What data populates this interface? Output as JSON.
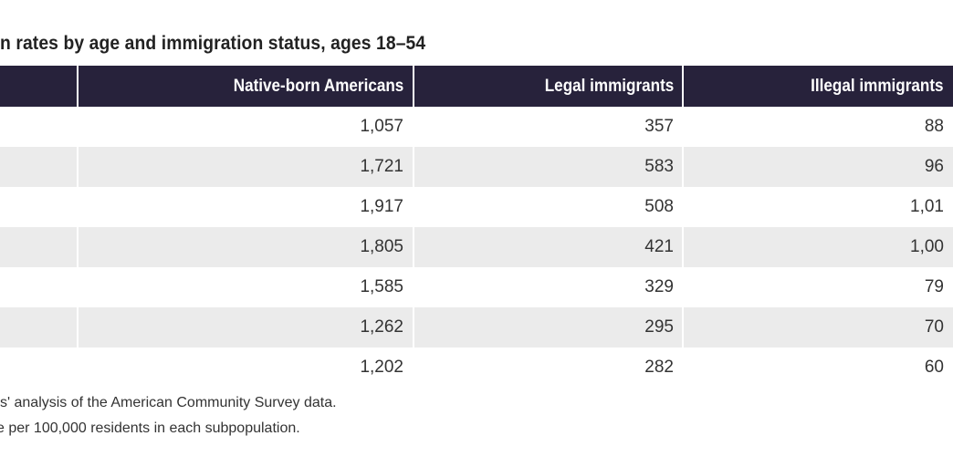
{
  "title": "n rates by age and immigration status, ages 18–54",
  "table": {
    "headers": [
      "",
      "Native-born Americans",
      "Legal immigrants",
      "Illegal immigrants"
    ],
    "rows": [
      [
        "",
        "1,057",
        "357",
        "88"
      ],
      [
        "",
        "1,721",
        "583",
        "96"
      ],
      [
        "",
        "1,917",
        "508",
        "1,01"
      ],
      [
        "",
        "1,805",
        "421",
        "1,00"
      ],
      [
        "",
        "1,585",
        "329",
        "79"
      ],
      [
        "",
        "1,262",
        "295",
        "70"
      ],
      [
        "",
        "1,202",
        "282",
        "60"
      ]
    ]
  },
  "notes": [
    "s' analysis of the American Community Survey data.",
    "e per 100,000 residents in each subpopulation."
  ],
  "colors": {
    "header_bg": "#27223b",
    "stripe": "#ebebeb"
  }
}
